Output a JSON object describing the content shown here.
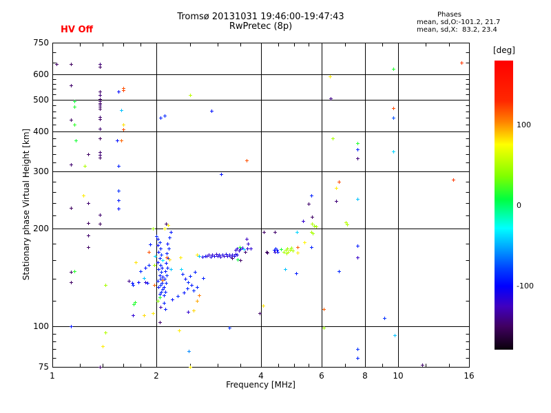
{
  "header": {
    "hv_status": "HV Off",
    "title_line1": "Tromsø 20131031 19:46:00-19:47:43",
    "title_line2": "RwPretec (8p)",
    "phases": {
      "title": "Phases",
      "o_line": "mean, sd,O:-101.2, 21.7",
      "x_line": "mean, sd,X:  83.2, 23.4"
    }
  },
  "colors": {
    "background": "#ffffff",
    "axis": "#000000",
    "hv_status": "#ff0000"
  },
  "chart_data": {
    "type": "scatter",
    "title": "Tromsø 20131031 19:46:00-19:47:43",
    "subtitle": "RwPretec (8p)",
    "xlabel": "Frequency [MHz]",
    "ylabel": "Stationary phase Virtual Height [km]",
    "xscale": "log",
    "yscale": "log",
    "xlim": [
      1,
      16
    ],
    "ylim": [
      75,
      750
    ],
    "xticks": [
      1,
      2,
      4,
      6,
      8,
      10,
      16
    ],
    "xminorticks": [
      1.2,
      1.4,
      1.6,
      1.8,
      2.5,
      3,
      3.5,
      4.5,
      5,
      5.5,
      7,
      9,
      12,
      14
    ],
    "yticks": [
      75,
      100,
      200,
      300,
      400,
      500,
      600,
      750
    ],
    "yminorticks": [
      80,
      85,
      90,
      95,
      120,
      140,
      160,
      180,
      220,
      240,
      260,
      280,
      320,
      340,
      360,
      380,
      420,
      440,
      460,
      480,
      520,
      540,
      560,
      580,
      650,
      700
    ],
    "grid": true,
    "marker": "plus",
    "colorbar": {
      "label": "[deg]",
      "min": -180,
      "max": 180,
      "ticks": [
        100,
        0,
        -100
      ],
      "stops": [
        [
          0.0,
          "#ff0000"
        ],
        [
          0.14,
          "#ff2800"
        ],
        [
          0.21,
          "#ff8000"
        ],
        [
          0.29,
          "#ffff00"
        ],
        [
          0.4,
          "#80ff00"
        ],
        [
          0.48,
          "#00ff40"
        ],
        [
          0.53,
          "#00ffa0"
        ],
        [
          0.58,
          "#00ffff"
        ],
        [
          0.65,
          "#00a0ff"
        ],
        [
          0.72,
          "#0040ff"
        ],
        [
          0.78,
          "#0000ff"
        ],
        [
          0.85,
          "#4000c0"
        ],
        [
          0.92,
          "#400060"
        ],
        [
          1.0,
          "#0a000a"
        ]
      ]
    },
    "points": [
      [
        1.37,
        645,
        -145
      ],
      [
        1.37,
        632,
        -150
      ],
      [
        1.37,
        530,
        -148
      ],
      [
        1.37,
        516,
        -145
      ],
      [
        1.37,
        503,
        -150
      ],
      [
        1.37,
        495,
        -147
      ],
      [
        1.37,
        488,
        -151
      ],
      [
        1.37,
        483,
        -146
      ],
      [
        1.37,
        477,
        -149
      ],
      [
        1.37,
        470,
        -152
      ],
      [
        1.37,
        442,
        -147
      ],
      [
        1.37,
        436,
        -150
      ],
      [
        1.37,
        408,
        -146
      ],
      [
        1.37,
        381,
        -151
      ],
      [
        1.37,
        345,
        -148
      ],
      [
        1.37,
        338,
        -145
      ],
      [
        1.37,
        331,
        -150
      ],
      [
        1.37,
        221,
        -147
      ],
      [
        1.37,
        207,
        -152
      ],
      [
        1.37,
        75,
        -149
      ],
      [
        1.27,
        340,
        -150
      ],
      [
        1.27,
        240,
        -147
      ],
      [
        1.27,
        208,
        -151
      ],
      [
        1.27,
        191,
        -148
      ],
      [
        1.27,
        176,
        -150
      ],
      [
        1.03,
        645,
        -150
      ],
      [
        1.13,
        644,
        -151
      ],
      [
        1.13,
        555,
        -148
      ],
      [
        1.13,
        434,
        -150
      ],
      [
        1.13,
        315,
        -147
      ],
      [
        1.13,
        232,
        -151
      ],
      [
        1.13,
        147,
        -149
      ],
      [
        1.13,
        137,
        -150
      ],
      [
        1.13,
        100,
        -95
      ],
      [
        1.16,
        495,
        10
      ],
      [
        1.16,
        475,
        15
      ],
      [
        1.16,
        420,
        18
      ],
      [
        1.17,
        375,
        12
      ],
      [
        1.16,
        148,
        16
      ],
      [
        1.24,
        313,
        50
      ],
      [
        1.23,
        253,
        80
      ],
      [
        1.42,
        134,
        48
      ],
      [
        1.42,
        96,
        52
      ],
      [
        1.4,
        87,
        80
      ],
      [
        1.55,
        530,
        -98
      ],
      [
        1.6,
        543,
        118
      ],
      [
        1.6,
        536,
        122
      ],
      [
        1.58,
        465,
        -45
      ],
      [
        1.6,
        420,
        82
      ],
      [
        1.6,
        405,
        120
      ],
      [
        1.54,
        375,
        -95
      ],
      [
        1.58,
        375,
        112
      ],
      [
        1.55,
        312,
        -90
      ],
      [
        1.55,
        262,
        -86
      ],
      [
        1.55,
        245,
        -92
      ],
      [
        1.55,
        231,
        -96
      ],
      [
        1.66,
        138,
        -140
      ],
      [
        1.7,
        136,
        -95
      ],
      [
        1.71,
        134,
        -90
      ],
      [
        1.74,
        158,
        82
      ],
      [
        1.77,
        137,
        -100
      ],
      [
        1.8,
        148,
        -88
      ],
      [
        1.72,
        117,
        14
      ],
      [
        1.73,
        119,
        16
      ],
      [
        1.71,
        108,
        -118
      ],
      [
        1.84,
        108,
        84
      ],
      [
        1.95,
        110,
        80
      ],
      [
        1.86,
        152,
        -95
      ],
      [
        1.9,
        155,
        -88
      ],
      [
        1.9,
        170,
        118
      ],
      [
        1.92,
        179,
        -92
      ],
      [
        1.95,
        200,
        45
      ],
      [
        1.97,
        155,
        48
      ],
      [
        1.84,
        141,
        -45
      ],
      [
        1.86,
        137,
        -120
      ],
      [
        1.88,
        136,
        -95
      ],
      [
        1.97,
        134,
        112
      ],
      [
        2.0,
        190,
        -90
      ],
      [
        2.02,
        186,
        -95
      ],
      [
        2.04,
        182,
        -88
      ],
      [
        2.02,
        178,
        -100
      ],
      [
        2.05,
        174,
        -92
      ],
      [
        2.03,
        170,
        -96
      ],
      [
        2.06,
        166,
        -85
      ],
      [
        2.04,
        162,
        -90
      ],
      [
        2.02,
        158,
        -98
      ],
      [
        2.05,
        155,
        -88
      ],
      [
        2.07,
        152,
        -94
      ],
      [
        2.03,
        150,
        -90
      ],
      [
        2.06,
        147,
        -86
      ],
      [
        2.04,
        144,
        -92
      ],
      [
        2.08,
        142,
        -97
      ],
      [
        2.05,
        140,
        -88
      ],
      [
        2.02,
        138,
        -93
      ],
      [
        2.07,
        136,
        -90
      ],
      [
        2.05,
        134,
        -85
      ],
      [
        2.03,
        132,
        -95
      ],
      [
        2.08,
        130,
        -90
      ],
      [
        2.06,
        128,
        -88
      ],
      [
        2.04,
        126,
        -92
      ],
      [
        2.1,
        125,
        -87
      ],
      [
        2.12,
        128,
        -90
      ],
      [
        2.1,
        132,
        -94
      ],
      [
        2.13,
        136,
        -88
      ],
      [
        2.11,
        140,
        -91
      ],
      [
        2.14,
        144,
        -86
      ],
      [
        2.12,
        148,
        -93
      ],
      [
        2.15,
        152,
        -89
      ],
      [
        2.13,
        157,
        -95
      ],
      [
        2.16,
        162,
        -87
      ],
      [
        2.14,
        168,
        -92
      ],
      [
        2.17,
        174,
        -90
      ],
      [
        2.15,
        180,
        -96
      ],
      [
        2.18,
        188,
        -90
      ],
      [
        2.2,
        196,
        -93
      ],
      [
        2.13,
        207,
        -150
      ],
      [
        2.16,
        205,
        78
      ],
      [
        2.11,
        200,
        76
      ],
      [
        1.98,
        165,
        -40
      ],
      [
        2.08,
        160,
        -35
      ],
      [
        2.2,
        150,
        -45
      ],
      [
        2.02,
        120,
        40
      ],
      [
        2.1,
        118,
        -90
      ],
      [
        2.05,
        115,
        -130
      ],
      [
        2.22,
        121,
        -95
      ],
      [
        2.3,
        124,
        -88
      ],
      [
        2.12,
        113,
        -92
      ],
      [
        2.04,
        123,
        15
      ],
      [
        2.08,
        139,
        110
      ],
      [
        2.14,
        163,
        120
      ],
      [
        2.18,
        161,
        85
      ],
      [
        2.34,
        163,
        80
      ],
      [
        2.62,
        120,
        95
      ],
      [
        2.65,
        125,
        105
      ],
      [
        2.38,
        145,
        -90
      ],
      [
        2.42,
        140,
        -95
      ],
      [
        2.47,
        137,
        -88
      ],
      [
        2.52,
        134,
        -92
      ],
      [
        2.45,
        131,
        -90
      ],
      [
        2.56,
        129,
        -86
      ],
      [
        2.4,
        127,
        -94
      ],
      [
        2.5,
        143,
        -89
      ],
      [
        2.58,
        147,
        -91
      ],
      [
        2.62,
        132,
        -90
      ],
      [
        2.36,
        150,
        -40
      ],
      [
        2.62,
        166,
        80
      ],
      [
        2.66,
        165,
        -45
      ],
      [
        2.72,
        164,
        -110
      ],
      [
        2.76,
        165,
        -95
      ],
      [
        2.79,
        165,
        -115
      ],
      [
        2.83,
        166,
        -120
      ],
      [
        2.87,
        164,
        -112
      ],
      [
        2.9,
        166,
        -118
      ],
      [
        2.94,
        165,
        -110
      ],
      [
        2.97,
        167,
        -122
      ],
      [
        3.0,
        165,
        -115
      ],
      [
        3.03,
        166,
        -110
      ],
      [
        3.06,
        164,
        -118
      ],
      [
        3.1,
        166,
        -113
      ],
      [
        3.13,
        165,
        -120
      ],
      [
        3.17,
        167,
        -110
      ],
      [
        3.2,
        165,
        -116
      ],
      [
        3.24,
        166,
        -112
      ],
      [
        3.28,
        164,
        -119
      ],
      [
        3.31,
        166,
        -114
      ],
      [
        3.35,
        165,
        -110
      ],
      [
        3.38,
        167,
        -117
      ],
      [
        3.42,
        166,
        -112
      ],
      [
        3.3,
        162,
        -148
      ],
      [
        3.43,
        161,
        10
      ],
      [
        3.49,
        160,
        -150
      ],
      [
        3.38,
        172,
        -120
      ],
      [
        3.42,
        174,
        -115
      ],
      [
        3.46,
        171,
        -122
      ],
      [
        3.5,
        173,
        -118
      ],
      [
        3.54,
        175,
        -112
      ],
      [
        3.57,
        173,
        -40
      ],
      [
        3.6,
        170,
        -148
      ],
      [
        3.65,
        174,
        -120
      ],
      [
        3.74,
        174,
        -118
      ],
      [
        3.67,
        180,
        -122
      ],
      [
        3.64,
        186,
        -125
      ],
      [
        3.48,
        176,
        14
      ],
      [
        2.73,
        141,
        -90
      ],
      [
        3.24,
        99,
        -85
      ],
      [
        2.48,
        84,
        -60
      ],
      [
        2.32,
        97,
        80
      ],
      [
        2.5,
        75,
        80
      ],
      [
        2.47,
        111,
        -120
      ],
      [
        2.56,
        112,
        85
      ],
      [
        2.04,
        103,
        -148
      ],
      [
        3.97,
        110,
        -150
      ],
      [
        4.07,
        116,
        82
      ],
      [
        3.07,
        295,
        -95
      ],
      [
        2.88,
        462,
        -95
      ],
      [
        3.64,
        325,
        118
      ],
      [
        2.5,
        517,
        55
      ],
      [
        2.05,
        440,
        -90
      ],
      [
        2.11,
        447,
        -88
      ],
      [
        4.08,
        196,
        -150
      ],
      [
        4.15,
        170,
        -152
      ],
      [
        4.18,
        169,
        -148
      ],
      [
        4.4,
        196,
        -148
      ],
      [
        4.37,
        172,
        -95
      ],
      [
        4.42,
        174,
        -90
      ],
      [
        4.45,
        172,
        -98
      ],
      [
        4.47,
        170,
        -92
      ],
      [
        4.4,
        170,
        -120
      ],
      [
        4.58,
        173,
        12
      ],
      [
        4.66,
        170,
        48
      ],
      [
        4.72,
        172,
        50
      ],
      [
        4.78,
        174,
        46
      ],
      [
        4.85,
        172,
        52
      ],
      [
        4.9,
        175,
        45
      ],
      [
        4.95,
        171,
        49
      ],
      [
        4.8,
        170,
        55
      ],
      [
        4.75,
        168,
        50
      ],
      [
        5.12,
        176,
        115
      ],
      [
        5.12,
        169,
        80
      ],
      [
        5.35,
        182,
        78
      ],
      [
        5.6,
        176,
        -90
      ],
      [
        5.08,
        196,
        -40
      ],
      [
        4.7,
        150,
        -45
      ],
      [
        5.06,
        146,
        -92
      ],
      [
        5.6,
        196,
        50
      ],
      [
        5.65,
        194,
        48
      ],
      [
        5.62,
        207,
        52
      ],
      [
        5.7,
        204,
        46
      ],
      [
        5.78,
        203,
        50
      ],
      [
        5.5,
        239,
        -148
      ],
      [
        5.63,
        218,
        -150
      ],
      [
        5.3,
        211,
        -120
      ],
      [
        5.61,
        253,
        -90
      ],
      [
        6.73,
        280,
        120
      ],
      [
        6.6,
        267,
        80
      ],
      [
        6.6,
        244,
        -145
      ],
      [
        7.6,
        247,
        -45
      ],
      [
        6.73,
        148,
        -88
      ],
      [
        7.6,
        177,
        -92
      ],
      [
        7.6,
        163,
        -122
      ],
      [
        7.06,
        209,
        55
      ],
      [
        7.1,
        206,
        50
      ],
      [
        6.45,
        380,
        48
      ],
      [
        7.6,
        368,
        15
      ],
      [
        7.6,
        352,
        -90
      ],
      [
        7.6,
        330,
        -145
      ],
      [
        6.34,
        590,
        80
      ],
      [
        6.36,
        505,
        -140
      ],
      [
        6.07,
        113,
        115
      ],
      [
        6.07,
        99,
        45
      ],
      [
        7.6,
        85,
        -85
      ],
      [
        7.6,
        80,
        -88
      ],
      [
        9.66,
        623,
        15
      ],
      [
        9.66,
        472,
        120
      ],
      [
        9.66,
        440,
        -75
      ],
      [
        9.66,
        346,
        -40
      ],
      [
        9.75,
        94,
        -45
      ],
      [
        9.1,
        106,
        -85
      ],
      [
        11.7,
        76,
        -148
      ],
      [
        14.4,
        283,
        125
      ],
      [
        15.2,
        651,
        125
      ]
    ]
  }
}
